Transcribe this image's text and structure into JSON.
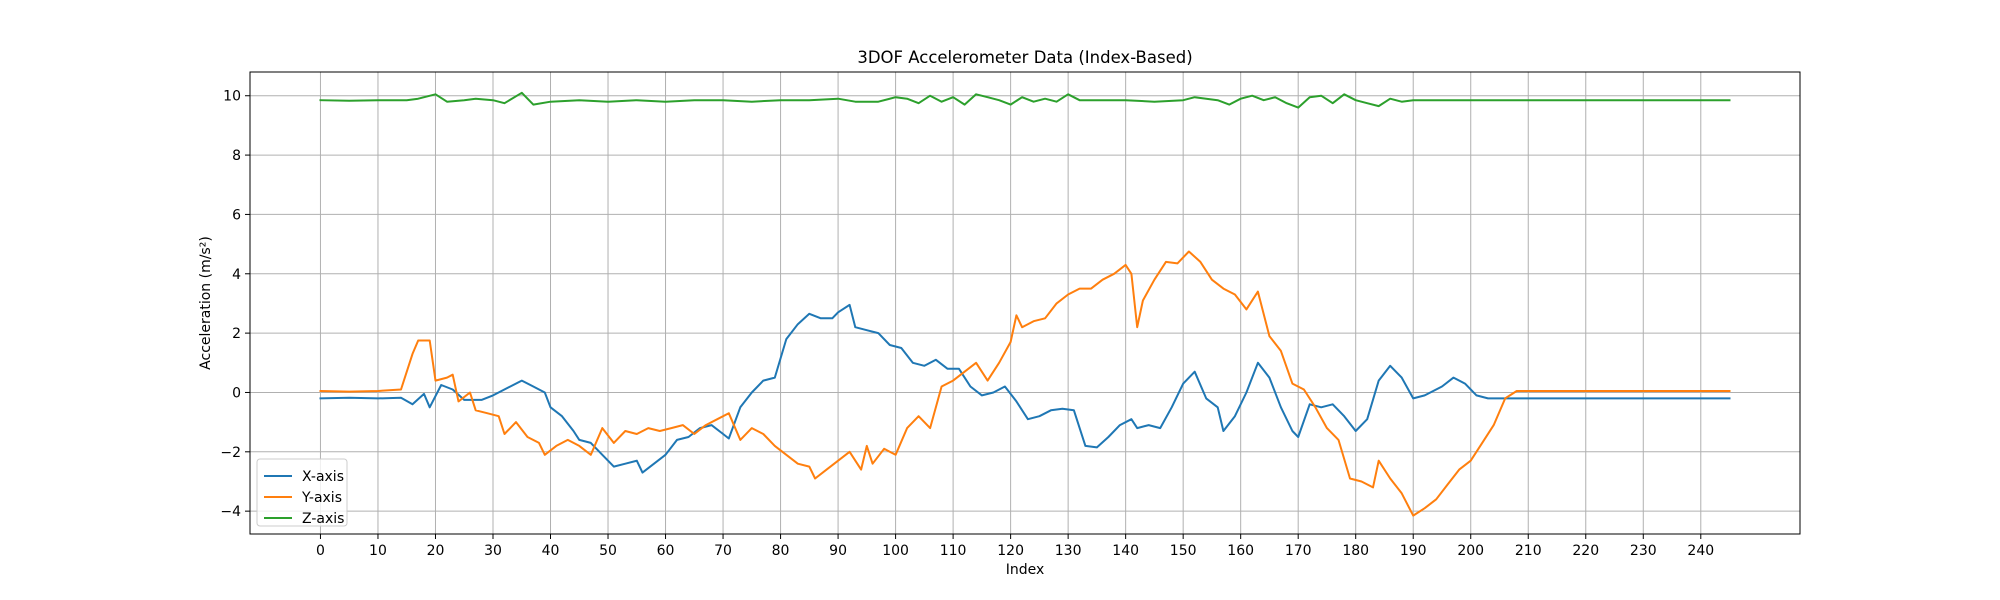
{
  "chart_data": {
    "type": "line",
    "title": "3DOF Accelerometer Data (Index-Based)",
    "xlabel": "Index",
    "ylabel": "Acceleration (m/s²)",
    "xlim": [
      -12.25,
      257.25
    ],
    "ylim": [
      -4.77,
      10.8
    ],
    "x_ticks": [
      0,
      10,
      20,
      30,
      40,
      50,
      60,
      70,
      80,
      90,
      100,
      110,
      120,
      130,
      140,
      150,
      160,
      170,
      180,
      190,
      200,
      210,
      220,
      230,
      240
    ],
    "y_ticks": [
      -4,
      -2,
      0,
      2,
      4,
      6,
      8,
      10
    ],
    "grid": true,
    "legend_position": "lower-left",
    "series": [
      {
        "name": "X-axis",
        "color": "#1f77b4",
        "points": [
          [
            0,
            -0.2
          ],
          [
            5,
            -0.18
          ],
          [
            10,
            -0.2
          ],
          [
            14,
            -0.18
          ],
          [
            16,
            -0.4
          ],
          [
            18,
            -0.05
          ],
          [
            19,
            -0.5
          ],
          [
            21,
            0.25
          ],
          [
            23,
            0.1
          ],
          [
            25,
            -0.25
          ],
          [
            28,
            -0.25
          ],
          [
            30,
            -0.1
          ],
          [
            33,
            0.2
          ],
          [
            35,
            0.4
          ],
          [
            37,
            0.2
          ],
          [
            39,
            0.0
          ],
          [
            40,
            -0.5
          ],
          [
            42,
            -0.8
          ],
          [
            44,
            -1.3
          ],
          [
            45,
            -1.6
          ],
          [
            47,
            -1.7
          ],
          [
            49,
            -2.1
          ],
          [
            51,
            -2.5
          ],
          [
            53,
            -2.4
          ],
          [
            55,
            -2.3
          ],
          [
            56,
            -2.7
          ],
          [
            58,
            -2.4
          ],
          [
            60,
            -2.1
          ],
          [
            62,
            -1.6
          ],
          [
            64,
            -1.5
          ],
          [
            66,
            -1.2
          ],
          [
            68,
            -1.1
          ],
          [
            70,
            -1.4
          ],
          [
            71,
            -1.55
          ],
          [
            73,
            -0.5
          ],
          [
            75,
            0.0
          ],
          [
            77,
            0.4
          ],
          [
            79,
            0.5
          ],
          [
            81,
            1.8
          ],
          [
            83,
            2.3
          ],
          [
            85,
            2.65
          ],
          [
            87,
            2.5
          ],
          [
            89,
            2.5
          ],
          [
            90,
            2.7
          ],
          [
            92,
            2.95
          ],
          [
            93,
            2.2
          ],
          [
            95,
            2.1
          ],
          [
            97,
            2.0
          ],
          [
            99,
            1.6
          ],
          [
            101,
            1.5
          ],
          [
            103,
            1.0
          ],
          [
            105,
            0.9
          ],
          [
            107,
            1.1
          ],
          [
            109,
            0.8
          ],
          [
            111,
            0.8
          ],
          [
            113,
            0.2
          ],
          [
            115,
            -0.1
          ],
          [
            117,
            0.0
          ],
          [
            119,
            0.2
          ],
          [
            121,
            -0.3
          ],
          [
            123,
            -0.9
          ],
          [
            125,
            -0.8
          ],
          [
            127,
            -0.6
          ],
          [
            129,
            -0.55
          ],
          [
            131,
            -0.6
          ],
          [
            133,
            -1.8
          ],
          [
            135,
            -1.85
          ],
          [
            137,
            -1.5
          ],
          [
            139,
            -1.1
          ],
          [
            141,
            -0.9
          ],
          [
            142,
            -1.2
          ],
          [
            144,
            -1.1
          ],
          [
            146,
            -1.2
          ],
          [
            148,
            -0.5
          ],
          [
            150,
            0.3
          ],
          [
            152,
            0.7
          ],
          [
            154,
            -0.2
          ],
          [
            156,
            -0.5
          ],
          [
            157,
            -1.3
          ],
          [
            159,
            -0.8
          ],
          [
            161,
            0.0
          ],
          [
            163,
            1.0
          ],
          [
            165,
            0.5
          ],
          [
            167,
            -0.5
          ],
          [
            169,
            -1.3
          ],
          [
            170,
            -1.5
          ],
          [
            172,
            -0.4
          ],
          [
            174,
            -0.5
          ],
          [
            176,
            -0.4
          ],
          [
            178,
            -0.8
          ],
          [
            180,
            -1.3
          ],
          [
            182,
            -0.9
          ],
          [
            184,
            0.4
          ],
          [
            186,
            0.9
          ],
          [
            188,
            0.5
          ],
          [
            190,
            -0.2
          ],
          [
            192,
            -0.1
          ],
          [
            195,
            0.2
          ],
          [
            197,
            0.5
          ],
          [
            199,
            0.3
          ],
          [
            201,
            -0.1
          ],
          [
            203,
            -0.2
          ],
          [
            210,
            -0.2
          ],
          [
            220,
            -0.2
          ],
          [
            230,
            -0.2
          ],
          [
            240,
            -0.2
          ],
          [
            245,
            -0.2
          ]
        ]
      },
      {
        "name": "Y-axis",
        "color": "#ff7f0e",
        "points": [
          [
            0,
            0.05
          ],
          [
            5,
            0.03
          ],
          [
            10,
            0.05
          ],
          [
            14,
            0.1
          ],
          [
            16,
            1.3
          ],
          [
            17,
            1.75
          ],
          [
            19,
            1.75
          ],
          [
            20,
            0.4
          ],
          [
            22,
            0.5
          ],
          [
            23,
            0.6
          ],
          [
            24,
            -0.3
          ],
          [
            26,
            0.0
          ],
          [
            27,
            -0.6
          ],
          [
            29,
            -0.7
          ],
          [
            31,
            -0.8
          ],
          [
            32,
            -1.4
          ],
          [
            34,
            -1.0
          ],
          [
            36,
            -1.5
          ],
          [
            38,
            -1.7
          ],
          [
            39,
            -2.1
          ],
          [
            41,
            -1.8
          ],
          [
            43,
            -1.6
          ],
          [
            45,
            -1.8
          ],
          [
            47,
            -2.1
          ],
          [
            49,
            -1.2
          ],
          [
            51,
            -1.7
          ],
          [
            53,
            -1.3
          ],
          [
            55,
            -1.4
          ],
          [
            57,
            -1.2
          ],
          [
            59,
            -1.3
          ],
          [
            61,
            -1.2
          ],
          [
            63,
            -1.1
          ],
          [
            65,
            -1.4
          ],
          [
            67,
            -1.1
          ],
          [
            69,
            -0.9
          ],
          [
            71,
            -0.7
          ],
          [
            73,
            -1.6
          ],
          [
            75,
            -1.2
          ],
          [
            77,
            -1.4
          ],
          [
            79,
            -1.8
          ],
          [
            81,
            -2.1
          ],
          [
            83,
            -2.4
          ],
          [
            85,
            -2.5
          ],
          [
            86,
            -2.9
          ],
          [
            88,
            -2.6
          ],
          [
            90,
            -2.3
          ],
          [
            92,
            -2.0
          ],
          [
            94,
            -2.6
          ],
          [
            95,
            -1.8
          ],
          [
            96,
            -2.4
          ],
          [
            98,
            -1.9
          ],
          [
            100,
            -2.1
          ],
          [
            102,
            -1.2
          ],
          [
            104,
            -0.8
          ],
          [
            106,
            -1.2
          ],
          [
            108,
            0.2
          ],
          [
            110,
            0.4
          ],
          [
            112,
            0.7
          ],
          [
            114,
            1.0
          ],
          [
            116,
            0.4
          ],
          [
            118,
            1.0
          ],
          [
            120,
            1.7
          ],
          [
            121,
            2.6
          ],
          [
            122,
            2.2
          ],
          [
            124,
            2.4
          ],
          [
            126,
            2.5
          ],
          [
            128,
            3.0
          ],
          [
            130,
            3.3
          ],
          [
            132,
            3.5
          ],
          [
            134,
            3.5
          ],
          [
            136,
            3.8
          ],
          [
            138,
            4.0
          ],
          [
            140,
            4.3
          ],
          [
            141,
            4.0
          ],
          [
            142,
            2.2
          ],
          [
            143,
            3.1
          ],
          [
            145,
            3.8
          ],
          [
            147,
            4.4
          ],
          [
            149,
            4.35
          ],
          [
            151,
            4.75
          ],
          [
            153,
            4.4
          ],
          [
            155,
            3.8
          ],
          [
            157,
            3.5
          ],
          [
            159,
            3.3
          ],
          [
            161,
            2.8
          ],
          [
            163,
            3.4
          ],
          [
            165,
            1.9
          ],
          [
            167,
            1.4
          ],
          [
            169,
            0.3
          ],
          [
            171,
            0.1
          ],
          [
            173,
            -0.5
          ],
          [
            175,
            -1.2
          ],
          [
            177,
            -1.6
          ],
          [
            179,
            -2.9
          ],
          [
            181,
            -3.0
          ],
          [
            183,
            -3.2
          ],
          [
            184,
            -2.3
          ],
          [
            186,
            -2.9
          ],
          [
            188,
            -3.4
          ],
          [
            190,
            -4.15
          ],
          [
            192,
            -3.9
          ],
          [
            194,
            -3.6
          ],
          [
            196,
            -3.1
          ],
          [
            198,
            -2.6
          ],
          [
            200,
            -2.3
          ],
          [
            202,
            -1.7
          ],
          [
            204,
            -1.1
          ],
          [
            206,
            -0.2
          ],
          [
            208,
            0.05
          ],
          [
            210,
            0.05
          ],
          [
            220,
            0.05
          ],
          [
            230,
            0.05
          ],
          [
            240,
            0.05
          ],
          [
            245,
            0.05
          ]
        ]
      },
      {
        "name": "Z-axis",
        "color": "#2ca02c",
        "points": [
          [
            0,
            9.85
          ],
          [
            5,
            9.83
          ],
          [
            10,
            9.85
          ],
          [
            15,
            9.85
          ],
          [
            17,
            9.9
          ],
          [
            20,
            10.05
          ],
          [
            22,
            9.8
          ],
          [
            25,
            9.85
          ],
          [
            27,
            9.9
          ],
          [
            30,
            9.85
          ],
          [
            32,
            9.75
          ],
          [
            35,
            10.1
          ],
          [
            37,
            9.7
          ],
          [
            40,
            9.8
          ],
          [
            45,
            9.85
          ],
          [
            50,
            9.8
          ],
          [
            55,
            9.85
          ],
          [
            60,
            9.8
          ],
          [
            65,
            9.85
          ],
          [
            70,
            9.85
          ],
          [
            75,
            9.8
          ],
          [
            80,
            9.85
          ],
          [
            85,
            9.85
          ],
          [
            90,
            9.9
          ],
          [
            93,
            9.8
          ],
          [
            97,
            9.8
          ],
          [
            100,
            9.95
          ],
          [
            102,
            9.9
          ],
          [
            104,
            9.75
          ],
          [
            106,
            10.0
          ],
          [
            108,
            9.8
          ],
          [
            110,
            9.95
          ],
          [
            112,
            9.7
          ],
          [
            114,
            10.05
          ],
          [
            116,
            9.95
          ],
          [
            118,
            9.85
          ],
          [
            120,
            9.7
          ],
          [
            122,
            9.95
          ],
          [
            124,
            9.8
          ],
          [
            126,
            9.9
          ],
          [
            128,
            9.8
          ],
          [
            130,
            10.05
          ],
          [
            132,
            9.85
          ],
          [
            135,
            9.85
          ],
          [
            140,
            9.85
          ],
          [
            145,
            9.8
          ],
          [
            150,
            9.85
          ],
          [
            152,
            9.95
          ],
          [
            154,
            9.9
          ],
          [
            156,
            9.85
          ],
          [
            158,
            9.7
          ],
          [
            160,
            9.9
          ],
          [
            162,
            10.0
          ],
          [
            164,
            9.85
          ],
          [
            166,
            9.95
          ],
          [
            168,
            9.75
          ],
          [
            170,
            9.6
          ],
          [
            172,
            9.95
          ],
          [
            174,
            10.0
          ],
          [
            176,
            9.75
          ],
          [
            178,
            10.05
          ],
          [
            180,
            9.85
          ],
          [
            182,
            9.75
          ],
          [
            184,
            9.65
          ],
          [
            186,
            9.9
          ],
          [
            188,
            9.8
          ],
          [
            190,
            9.85
          ],
          [
            195,
            9.85
          ],
          [
            200,
            9.85
          ],
          [
            210,
            9.85
          ],
          [
            220,
            9.85
          ],
          [
            230,
            9.85
          ],
          [
            240,
            9.85
          ],
          [
            245,
            9.85
          ]
        ]
      }
    ]
  }
}
